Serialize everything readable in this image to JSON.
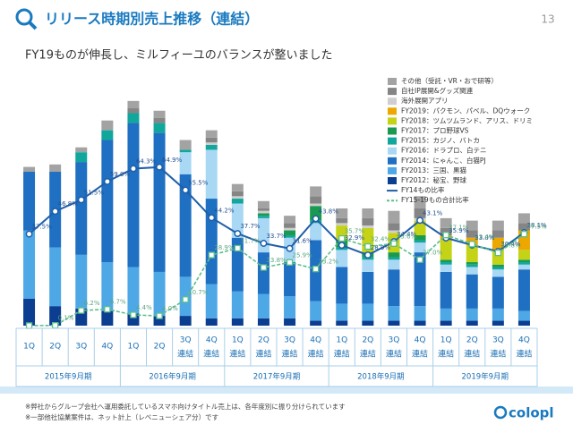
{
  "header": {
    "title": "リリース時期別売上推移（連結）",
    "page": "13"
  },
  "subtitle": "FY19ものが伸長し、ミルフィーユのバランスが整いました",
  "chart_data": {
    "type": "bar",
    "stacked": true,
    "categories": [
      "1Q",
      "2Q",
      "3Q",
      "4Q",
      "1Q",
      "2Q",
      "3Q",
      "4Q",
      "1Q",
      "2Q",
      "3Q",
      "4Q",
      "1Q",
      "2Q",
      "3Q",
      "4Q",
      "1Q",
      "2Q",
      "3Q",
      "4Q"
    ],
    "sublabels": [
      null,
      null,
      null,
      null,
      null,
      null,
      "連結",
      "連結",
      "連結",
      "連結",
      "連結",
      "連結",
      "連結",
      "連結",
      "連結",
      "連結",
      "連結",
      "連結",
      "連結",
      "連結"
    ],
    "groups": [
      "2015年9月期",
      "2016年9月期",
      "2017年9月期",
      "2018年9月期",
      "2019年9月期"
    ],
    "ylim": [
      0,
      100
    ],
    "y2lim": [
      0,
      100
    ],
    "series": [
      {
        "name": "その他（受託・VR・おで研等）",
        "color": "#a3a3a3",
        "values": [
          2,
          3,
          2,
          4,
          3,
          3,
          4,
          3,
          3,
          3,
          3,
          4,
          4,
          4,
          5,
          5,
          4,
          4,
          4,
          4
        ]
      },
      {
        "name": "自社IP展開&グッズ関連",
        "color": "#858585",
        "values": [
          0,
          0,
          0,
          0,
          2,
          2,
          0,
          2,
          2,
          1,
          2,
          3,
          2,
          3,
          3,
          4,
          3,
          3,
          3,
          3
        ]
      },
      {
        "name": "海外展開アプリ",
        "color": "#cfcfcf",
        "values": [
          0,
          0,
          0,
          0,
          0,
          0,
          0,
          1,
          1,
          1,
          1,
          1,
          1,
          1,
          1,
          1,
          0,
          0,
          0,
          0
        ]
      },
      {
        "name": "FY2019：パクモン、パベル、DQウォーク",
        "color": "#eca800",
        "values": [
          0,
          0,
          0,
          0,
          0,
          0,
          0,
          0,
          0,
          0,
          0,
          0,
          0,
          0,
          0,
          0,
          2,
          3,
          5,
          8
        ]
      },
      {
        "name": "FY2018：ツムツムランド、アリス、ドリミ",
        "color": "#c5d316",
        "values": [
          0,
          0,
          0,
          0,
          0,
          0,
          0,
          0,
          0,
          0,
          0,
          0,
          6,
          10,
          8,
          6,
          8,
          7,
          6,
          4
        ]
      },
      {
        "name": "FY2017：プロ野球VS",
        "color": "#1a9a50",
        "values": [
          0,
          0,
          0,
          0,
          0,
          0,
          0,
          0,
          0,
          1,
          2,
          6,
          3,
          2,
          2,
          2,
          1,
          1,
          1,
          1
        ]
      },
      {
        "name": "FY2015：カジノ、バトカ",
        "color": "#12a79d",
        "values": [
          0,
          0,
          4,
          4,
          4,
          4,
          1,
          2,
          2,
          1,
          1,
          1,
          1,
          1,
          1,
          1,
          1,
          1,
          1,
          1
        ]
      },
      {
        "name": "FY2016：ドラプロ、白テニ",
        "color": "#a9d8f5",
        "values": [
          0,
          0,
          0,
          0,
          0,
          0,
          9,
          20,
          14,
          14,
          10,
          7,
          7,
          5,
          4,
          4,
          3,
          3,
          3,
          2
        ]
      },
      {
        "name": "FY2014：にゃんこ、白猫PJ",
        "color": "#1f6fc2",
        "values": [
          24,
          31,
          38,
          50,
          59,
          57,
          42,
          35,
          22,
          17,
          14,
          25,
          15,
          13,
          15,
          22,
          15,
          14,
          13,
          17
        ]
      },
      {
        "name": "FY2013：三国、黒猫",
        "color": "#4ea8e6",
        "values": [
          28,
          24,
          22,
          20,
          19,
          18,
          16,
          14,
          11,
          10,
          9,
          8,
          7,
          7,
          6,
          6,
          5,
          5,
          5,
          4
        ]
      },
      {
        "name": "FY2012：秘宝、野球",
        "color": "#0b3d91",
        "values": [
          11,
          8,
          7,
          6,
          5,
          4,
          4,
          3,
          3,
          3,
          3,
          2,
          2,
          2,
          2,
          2,
          2,
          2,
          2,
          2
        ]
      }
    ],
    "lines": [
      {
        "name": "FY14もの比率",
        "color": "#1f5fa8",
        "values": [
          37.5,
          46.8,
          51.5,
          59.0,
          64.3,
          64.9,
          55.5,
          44.2,
          37.7,
          33.7,
          31.6,
          43.8,
          32.9,
          28.9,
          34.4,
          43.1,
          35.9,
          33.0,
          30.4,
          38.1
        ],
        "value_labels": [
          "37.5%",
          "46.8%",
          "51.5%",
          "59.0%",
          "64.3%",
          "64.9%",
          "55.5%",
          "44.2%",
          "37.7%",
          "33.7%",
          "31.6%",
          "43.8%",
          "32.9%",
          "28.9%",
          "34.4%",
          "43.1%",
          "35.9%",
          "33.0%",
          "30.4%",
          "38.1%"
        ]
      },
      {
        "name": "FY15-19もの合計比率",
        "color": "#5cbf8a",
        "values": [
          0,
          0.1,
          6.2,
          6.7,
          4.4,
          4.0,
          10.7,
          28.9,
          31.7,
          23.8,
          25.9,
          23.2,
          35.7,
          32.4,
          33.6,
          27.0,
          37.1,
          33.4,
          29.8,
          37.5
        ],
        "value_labels": [
          null,
          "0.1%",
          "6.2%",
          "6.7%",
          "4.4%",
          "4.0%",
          "10.7%",
          "28.9%",
          "31.7%",
          "23.8%",
          "25.9%",
          "23.2%",
          "35.7%",
          "32.4%",
          "33.6%",
          "27.0%",
          "37.1%",
          "33.4%",
          "29.8%",
          "37.5%"
        ]
      }
    ]
  },
  "footnotes": [
    "※弊社からグループ会社へ運用委託しているスマホ向けタイトル売上は、各年度別に振り分けられています",
    "※一部他社協業案件は、ネット計上（レベニューシェア分）です"
  ],
  "logo": "colopl"
}
